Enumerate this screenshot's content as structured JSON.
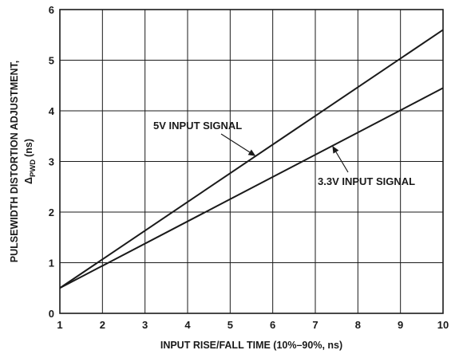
{
  "chart_data": {
    "type": "line",
    "xlabel": "INPUT RISE/FALL TIME (10%–90%, ns)",
    "ylabel_line1": "PULSEWIDTH DISTORTION ADJUSTMENT,",
    "ylabel_line2_symbol": "Δ",
    "ylabel_line2_sub": "PWD",
    "ylabel_line2_unit": "(ns)",
    "xlim": [
      1,
      10
    ],
    "ylim": [
      0,
      6
    ],
    "xticks": [
      "1",
      "2",
      "3",
      "4",
      "5",
      "6",
      "7",
      "8",
      "9",
      "10"
    ],
    "yticks": [
      "0",
      "1",
      "2",
      "3",
      "4",
      "5",
      "6"
    ],
    "grid": true,
    "series": [
      {
        "name": "5V INPUT SIGNAL",
        "x": [
          1,
          10
        ],
        "y": [
          0.5,
          5.6
        ]
      },
      {
        "name": "3.3V INPUT SIGNAL",
        "x": [
          1,
          10
        ],
        "y": [
          0.5,
          4.45
        ]
      }
    ],
    "annotations": [
      {
        "text": "5V INPUT SIGNAL",
        "series": 0,
        "point_x": 5.6
      },
      {
        "text": "3.3V INPUT SIGNAL",
        "series": 1,
        "point_x": 7.4
      }
    ]
  }
}
